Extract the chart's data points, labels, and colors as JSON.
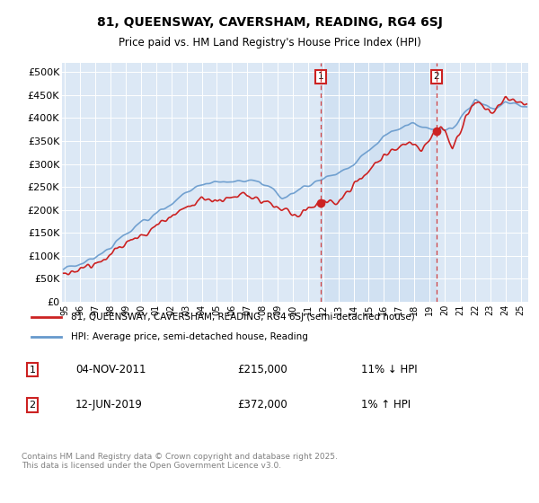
{
  "title1": "81, QUEENSWAY, CAVERSHAM, READING, RG4 6SJ",
  "title2": "Price paid vs. HM Land Registry's House Price Index (HPI)",
  "ylabel_ticks": [
    "£0",
    "£50K",
    "£100K",
    "£150K",
    "£200K",
    "£250K",
    "£300K",
    "£350K",
    "£400K",
    "£450K",
    "£500K"
  ],
  "ytick_values": [
    0,
    50000,
    100000,
    150000,
    200000,
    250000,
    300000,
    350000,
    400000,
    450000,
    500000
  ],
  "ylim": [
    0,
    520000
  ],
  "xlim_start": 1994.8,
  "xlim_end": 2025.5,
  "plot_bg": "#dce8f5",
  "shade_color": "#ddeeff",
  "hpi_color": "#6699cc",
  "price_color": "#cc2222",
  "marker1_x": 2011.85,
  "marker1_y": 215000,
  "marker1_label": "1",
  "marker2_x": 2019.45,
  "marker2_y": 372000,
  "marker2_label": "2",
  "transaction1_date": "04-NOV-2011",
  "transaction1_price": "£215,000",
  "transaction1_hpi": "11% ↓ HPI",
  "transaction2_date": "12-JUN-2019",
  "transaction2_price": "£372,000",
  "transaction2_hpi": "1% ↑ HPI",
  "legend_line1": "81, QUEENSWAY, CAVERSHAM, READING, RG4 6SJ (semi-detached house)",
  "legend_line2": "HPI: Average price, semi-detached house, Reading",
  "footer": "Contains HM Land Registry data © Crown copyright and database right 2025.\nThis data is licensed under the Open Government Licence v3.0.",
  "xtick_years": [
    1995,
    1996,
    1997,
    1998,
    1999,
    2000,
    2001,
    2002,
    2003,
    2004,
    2005,
    2006,
    2007,
    2008,
    2009,
    2010,
    2011,
    2012,
    2013,
    2014,
    2015,
    2016,
    2017,
    2018,
    2019,
    2020,
    2021,
    2022,
    2023,
    2024,
    2025
  ],
  "xtick_labels": [
    "95",
    "96",
    "97",
    "98",
    "99",
    "00",
    "01",
    "02",
    "03",
    "04",
    "05",
    "06",
    "07",
    "08",
    "09",
    "10",
    "11",
    "12",
    "13",
    "14",
    "15",
    "16",
    "17",
    "18",
    "19",
    "20",
    "21",
    "22",
    "23",
    "24",
    "25"
  ]
}
